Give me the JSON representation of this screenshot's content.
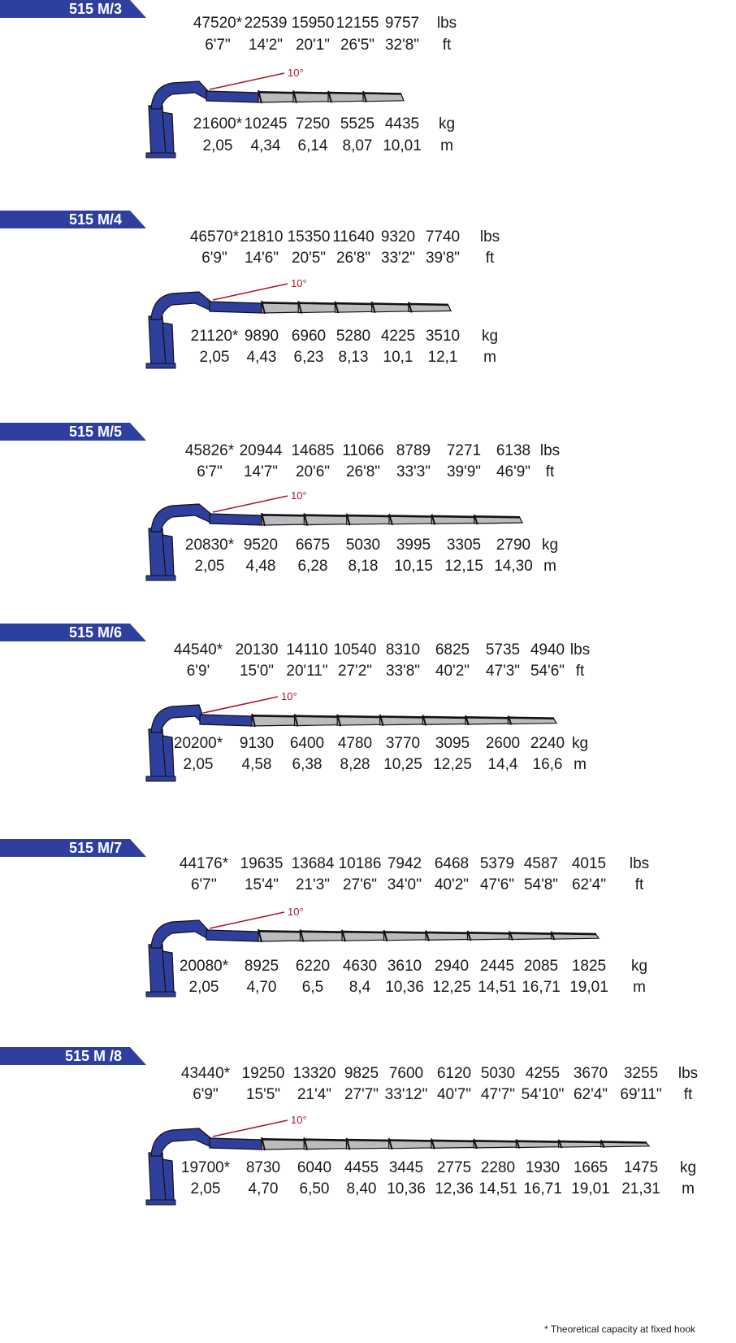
{
  "colors": {
    "brand_blue": "#2f3f9e",
    "boom_gray": "#b9bbbf",
    "angle_red": "#a8192e"
  },
  "angle_label": "10°",
  "footnote": "* Theoretical capacity at fixed hook",
  "models": [
    {
      "name": "515 M/3",
      "lbs": [
        "47520*",
        "22539",
        "15950",
        "12155",
        "9757"
      ],
      "unit_lbs": "lbs",
      "ft": [
        "6'7\"",
        "14'2\"",
        "20'1\"",
        "26'5\"",
        "32'8\""
      ],
      "unit_ft": "ft",
      "kg": [
        "21600*",
        "10245",
        "7250",
        "5525",
        "4435"
      ],
      "unit_kg": "kg",
      "m": [
        "2,05",
        "4,34",
        "6,14",
        "8,07",
        "10,01"
      ],
      "unit_m": "m"
    },
    {
      "name": "515 M/4",
      "lbs": [
        "46570*",
        "21810",
        "15350",
        "11640",
        "9320",
        "7740"
      ],
      "unit_lbs": "lbs",
      "ft": [
        "6'9\"",
        "14'6\"",
        "20'5\"",
        "26'8\"",
        "33'2\"",
        "39'8\""
      ],
      "unit_ft": "ft",
      "kg": [
        "21120*",
        "9890",
        "6960",
        "5280",
        "4225",
        "3510"
      ],
      "unit_kg": "kg",
      "m": [
        "2,05",
        "4,43",
        "6,23",
        "8,13",
        "10,1",
        "12,1"
      ],
      "unit_m": "m"
    },
    {
      "name": "515 M/5",
      "lbs": [
        "45826*",
        "20944",
        "14685",
        "11066",
        "8789",
        "7271",
        "6138"
      ],
      "unit_lbs": "lbs",
      "ft": [
        "6'7\"",
        "14'7\"",
        "20'6\"",
        "26'8\"",
        "33'3\"",
        "39'9\"",
        "46'9\""
      ],
      "unit_ft": "ft",
      "kg": [
        "20830*",
        "9520",
        "6675",
        "5030",
        "3995",
        "3305",
        "2790"
      ],
      "unit_kg": "kg",
      "m": [
        "2,05",
        "4,48",
        "6,28",
        "8,18",
        "10,15",
        "12,15",
        "14,30"
      ],
      "unit_m": "m"
    },
    {
      "name": "515 M/6",
      "lbs": [
        "44540*",
        "20130",
        "14110",
        "10540",
        "8310",
        "6825",
        "5735",
        "4940"
      ],
      "unit_lbs": "lbs",
      "ft": [
        "6'9'",
        "15'0\"",
        "20'11\"",
        "27'2\"",
        "33'8\"",
        "40'2\"",
        "47'3\"",
        "54'6\""
      ],
      "unit_ft": "ft",
      "kg": [
        "20200*",
        "9130",
        "6400",
        "4780",
        "3770",
        "3095",
        "2600",
        "2240"
      ],
      "unit_kg": "kg",
      "m": [
        "2,05",
        "4,58",
        "6,38",
        "8,28",
        "10,25",
        "12,25",
        "14,4",
        "16,6"
      ],
      "unit_m": "m"
    },
    {
      "name": "515 M/7",
      "lbs": [
        "44176*",
        "19635",
        "13684",
        "10186",
        "7942",
        "6468",
        "5379",
        "4587",
        "4015"
      ],
      "unit_lbs": "lbs",
      "ft": [
        "6'7''",
        "15'4\"",
        "21'3\"",
        "27'6\"",
        "34'0''",
        "40'2\"",
        "47'6\"",
        "54'8\"",
        "62'4\""
      ],
      "unit_ft": "ft",
      "kg": [
        "20080*",
        "8925",
        "6220",
        "4630",
        "3610",
        "2940",
        "2445",
        "2085",
        "1825"
      ],
      "unit_kg": "kg",
      "m": [
        "2,05",
        "4,70",
        "6,5",
        "8,4",
        "10,36",
        "12,25",
        "14,51",
        "16,71",
        "19,01"
      ],
      "unit_m": "m"
    },
    {
      "name": "515 M /8",
      "lbs": [
        "43440*",
        "19250",
        "13320",
        "9825",
        "7600",
        "6120",
        "5030",
        "4255",
        "3670",
        "3255"
      ],
      "unit_lbs": "lbs",
      "ft": [
        "6'9\"",
        "15'5\"",
        "21'4\"",
        "27'7\"",
        "33'12\"",
        "40'7\"",
        "47'7\"",
        "54'10\"",
        "62'4\"",
        "69'11\""
      ],
      "unit_ft": "ft",
      "kg": [
        "19700*",
        "8730",
        "6040",
        "4455",
        "3445",
        "2775",
        "2280",
        "1930",
        "1665",
        "1475"
      ],
      "unit_kg": "kg",
      "m": [
        "2,05",
        "4,70",
        "6,50",
        "8,40",
        "10,36",
        "12,36",
        "14,51",
        "16,71",
        "19,01",
        "21,31"
      ],
      "unit_m": "m"
    }
  ]
}
